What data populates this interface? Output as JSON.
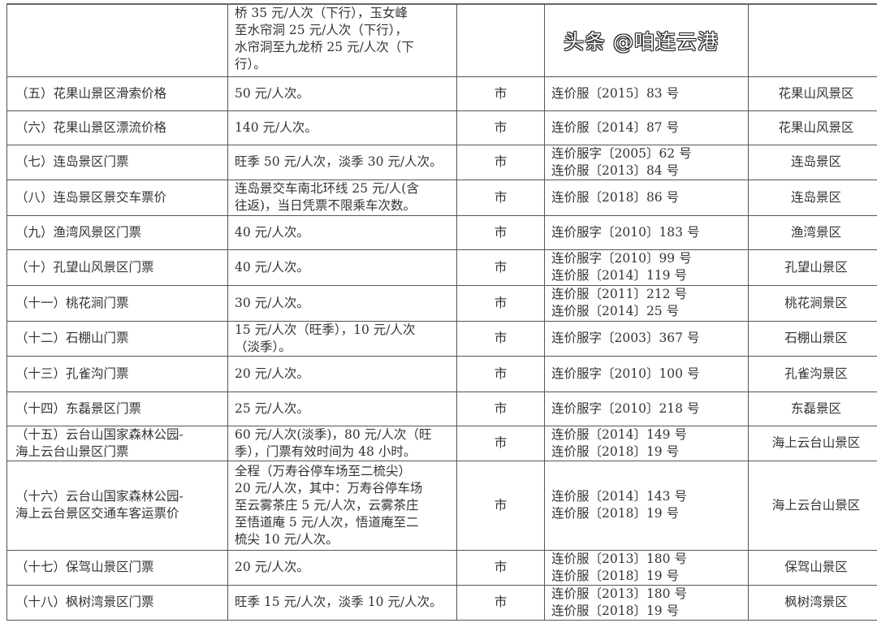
{
  "rows": [
    {
      "item": "",
      "price": [
        "桥 35 元/人次（下行），玉女峰",
        "至水帘洞 25 元/人次（下行），",
        "水帘洞至九龙桥 25 元/人次（下",
        "行）。"
      ],
      "level": "",
      "docs": [],
      "scenic": ""
    },
    {
      "item": "（五）花果山景区滑索价格",
      "price": [
        "50 元/人次。"
      ],
      "level": "市",
      "docs": [
        "连价服〔2015〕83 号"
      ],
      "scenic": "花果山风景区"
    },
    {
      "item": "（六）花果山景区漂流价格",
      "price": [
        "140 元/人次。"
      ],
      "level": "市",
      "docs": [
        "连价服〔2014〕87 号"
      ],
      "scenic": "花果山风景区"
    },
    {
      "item": "（七）连岛景区门票",
      "price": [
        "旺季 50 元/人次，淡季 30 元/人次。"
      ],
      "level": "市",
      "docs": [
        "连价服字〔2005〕62 号",
        "连价服〔2013〕84 号"
      ],
      "scenic": "连岛景区"
    },
    {
      "item": "（八）连岛景区景交车票价",
      "price": [
        "连岛景交车南北环线 25 元/人(含",
        "往返)，当日凭票不限乘车次数。"
      ],
      "level": "市",
      "docs": [
        "连价服〔2018〕86 号"
      ],
      "scenic": "连岛景区"
    },
    {
      "item": "（九）渔湾风景区门票",
      "price": [
        "40 元/人次。"
      ],
      "level": "市",
      "docs": [
        "连价服字〔2010〕183 号"
      ],
      "scenic": "渔湾景区"
    },
    {
      "item": "（十）孔望山风景区门票",
      "price": [
        "40 元/人次。"
      ],
      "level": "市",
      "docs": [
        "连价服字〔2010〕99 号",
        "连价服〔2014〕119 号"
      ],
      "scenic": "孔望山景区"
    },
    {
      "item": "（十一）桃花涧门票",
      "price": [
        "30 元/人次。"
      ],
      "level": "市",
      "docs": [
        "连价服〔2011〕212 号",
        "连价服〔2014〕25 号"
      ],
      "scenic": "桃花涧景区"
    },
    {
      "item": "（十二）石棚山门票",
      "price": [
        "15 元/人次（旺季），10 元/人次",
        "（淡季）。"
      ],
      "level": "市",
      "docs": [
        "连价服字〔2003〕367 号"
      ],
      "scenic": "石棚山景区"
    },
    {
      "item": "（十三）孔雀沟门票",
      "price": [
        "20 元/人次。"
      ],
      "level": "市",
      "docs": [
        "连价服字〔2010〕100 号"
      ],
      "scenic": "孔雀沟景区"
    },
    {
      "item": "（十四）东磊景区门票",
      "price": [
        "25 元/人次。"
      ],
      "level": "市",
      "docs": [
        "连价服字〔2010〕218 号"
      ],
      "scenic": "东磊景区"
    },
    {
      "item": [
        "（十五）云台山国家森林公园-",
        "海上云台山景区门票"
      ],
      "price": [
        "60 元/人次(淡季)，80 元/人次（旺",
        "季），门票有效时间为 48 小时。"
      ],
      "level": "市",
      "docs": [
        "连价服〔2014〕149 号",
        "连价服〔2018〕19 号"
      ],
      "scenic": "海上云台山景区"
    },
    {
      "item": [
        "（十六）云台山国家森林公园-",
        "海上云台景区交通车客运票价"
      ],
      "price": [
        "全程（万寿谷停车场至二梳尖）",
        "20 元/人次，其中：万寿谷停车场",
        "至云雾茶庄 5 元/人次，云雾茶庄",
        "至悟道庵 5 元/人次，悟道庵至二",
        "梳尖 10 元/人次。"
      ],
      "level": "市",
      "docs": [
        "连价服〔2014〕143 号",
        "连价服〔2018〕19 号"
      ],
      "scenic": "海上云台山景区"
    },
    {
      "item": "（十七）保驾山景区门票",
      "price": [
        "20 元/人次。"
      ],
      "level": "市",
      "docs": [
        "连价服〔2013〕180 号",
        "连价服〔2018〕19 号"
      ],
      "scenic": "保驾山景区"
    },
    {
      "item": "（十八）枫树湾景区门票",
      "price": [
        "旺季 15 元/人次，淡季 10 元/人次。"
      ],
      "level": "市",
      "docs": [
        "连价服〔2013〕180 号",
        "连价服〔2018〕19 号"
      ],
      "scenic": "枫树湾景区"
    }
  ],
  "watermark": "头条 @咱连云港"
}
